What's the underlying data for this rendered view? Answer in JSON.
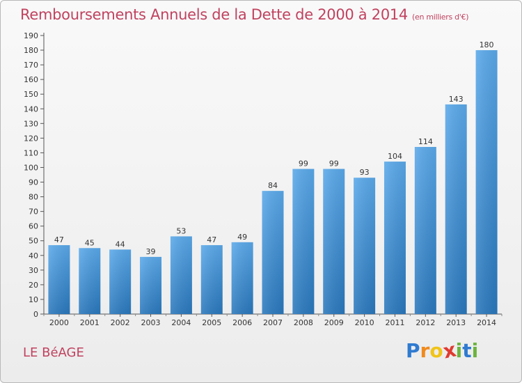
{
  "chart_data": {
    "type": "bar",
    "title": "Remboursements Annuels de la Dette de 2000 à 2014",
    "subtitle": "(en milliers d'€)",
    "categories": [
      "2000",
      "2001",
      "2002",
      "2003",
      "2004",
      "2005",
      "2006",
      "2007",
      "2008",
      "2009",
      "2010",
      "2011",
      "2012",
      "2013",
      "2014"
    ],
    "values": [
      47,
      45,
      44,
      39,
      53,
      47,
      49,
      84,
      99,
      99,
      93,
      104,
      114,
      143,
      180
    ],
    "ylim": [
      0,
      190
    ],
    "ytick_step": 10,
    "xlabel": "",
    "ylabel": "",
    "grid": false,
    "bar_color": "#3d8fd6"
  },
  "footer": {
    "commune": "LE BéAGE",
    "brand_letters": [
      "P",
      "r",
      "o",
      "x",
      "i",
      "t",
      "i"
    ],
    "brand_colors": [
      "#2f7bd0",
      "#f08a1c",
      "#f0c419",
      "#e03a2f",
      "#6cb43f",
      "#2f7bd0",
      "#6cb43f"
    ]
  }
}
